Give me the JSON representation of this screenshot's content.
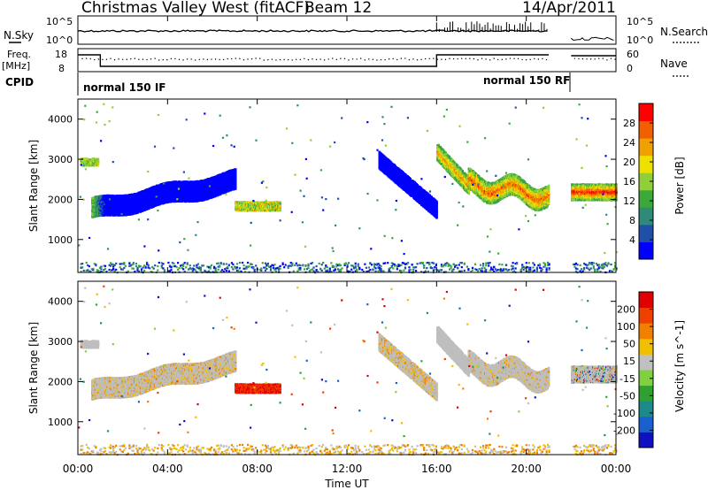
{
  "header": {
    "title": "Christmas Valley West (fitACF)",
    "beam": "Beam 12",
    "date": "14/Apr/2011"
  },
  "panels": {
    "nsky_label": "N.Sky",
    "nsearch_label": "N.Search",
    "nsky_ticks": [
      "10^5",
      "10^0"
    ],
    "nsearch_ticks": [
      "10^5",
      "10^0"
    ],
    "freq_label_1": "Freq.",
    "freq_label_2": "[MHz]",
    "freq_ticks": [
      "18",
      "8"
    ],
    "nave_label": "Nave",
    "nave_ticks": [
      "60",
      "0"
    ],
    "cpid_label": "CPID",
    "cpid_1": "normal 150 IF",
    "cpid_2": "normal 150 RF"
  },
  "colors": {
    "power_scale": [
      "#0000ff",
      "#1f4fa8",
      "#2f8a7a",
      "#3aa83a",
      "#8fcf3a",
      "#f0e000",
      "#f0a000",
      "#f06000",
      "#ff0000"
    ],
    "velocity_scale": [
      "#1010c0",
      "#1a5fd0",
      "#1a8a8a",
      "#30a030",
      "#80d040",
      "#c0c0c0",
      "#f0c000",
      "#f08000",
      "#f04000",
      "#e00000"
    ],
    "ground_scatter": "#bebebe"
  },
  "chart_data": [
    {
      "type": "heatmap",
      "name_text": "Power",
      "ylabel": "Slant Range [km]",
      "xlabel": "Time UT",
      "x_ticks": [
        "00:00",
        "04:00",
        "08:00",
        "12:00",
        "16:00",
        "20:00",
        "00:00"
      ],
      "x_range_hours": [
        0,
        24
      ],
      "y_ticks": [
        1000,
        2000,
        3000,
        4000
      ],
      "ylim": [
        180,
        4500
      ],
      "colorbar_label": "Power [dB]",
      "colorbar_ticks": [
        "28",
        "24",
        "20",
        "16",
        "12",
        "8",
        "4"
      ],
      "colorbar_range": [
        0,
        30
      ]
    },
    {
      "type": "heatmap",
      "name_text": "Velocity",
      "ylabel": "Slant Range [km]",
      "xlabel": "Time UT",
      "x_ticks": [
        "00:00",
        "04:00",
        "08:00",
        "12:00",
        "16:00",
        "20:00",
        "00:00"
      ],
      "x_range_hours": [
        0,
        24
      ],
      "y_ticks": [
        1000,
        2000,
        3000,
        4000
      ],
      "ylim": [
        180,
        4500
      ],
      "colorbar_label": "Velocity [m s^-1]",
      "colorbar_ticks": [
        "200",
        "100",
        "50",
        "15",
        "-15",
        "-50",
        "-100",
        "-200"
      ],
      "colorbar_range": [
        -250,
        250
      ]
    }
  ]
}
